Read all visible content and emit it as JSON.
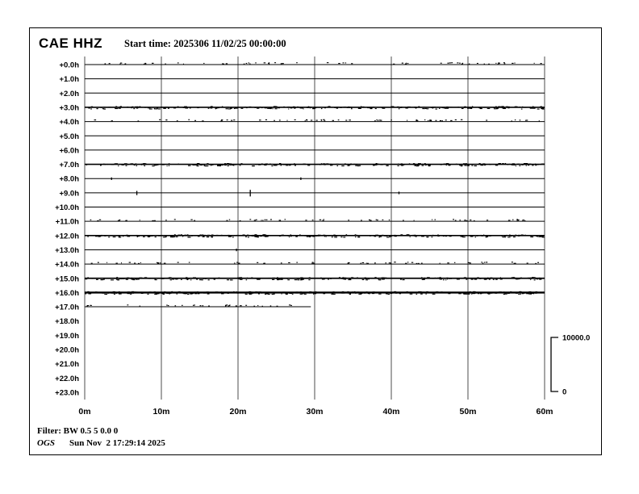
{
  "header": {
    "station": "CAE HHZ",
    "start_time_label": "Start time: 2025306 11/02/25 00:00:00"
  },
  "footer": {
    "filter_label": "Filter: BW 0.5 5 0.0 0",
    "agency": "OGS",
    "timestamp": "Sun Nov  2 17:29:14 2025"
  },
  "colors": {
    "background": "#ffffff",
    "frame": "#000000",
    "grid": "#909090",
    "trace": "#000000",
    "text": "#000000"
  },
  "chart_data": {
    "type": "line",
    "subtype": "helicorder",
    "title": "CAE HHZ",
    "start_time": "2025306 11/02/25 00:00:00",
    "grid": "vertical-only",
    "x_axis": {
      "tick_labels": [
        "0m",
        "10m",
        "20m",
        "30m",
        "40m",
        "50m",
        "60m"
      ],
      "range_minutes": [
        0,
        60
      ],
      "minutes_per_line": 60
    },
    "amplitude_scale": {
      "max": 10000.0,
      "min": 0,
      "max_label": "10000.0",
      "min_label": "0"
    },
    "rows": [
      {
        "label": "+0.0h",
        "activity": "light",
        "start_min": 0,
        "end_min": 60,
        "spikes": []
      },
      {
        "label": "+1.0h",
        "activity": "quiet",
        "start_min": 0,
        "end_min": 60,
        "spikes": []
      },
      {
        "label": "+2.0h",
        "activity": "quiet",
        "start_min": 0,
        "end_min": 60,
        "spikes": []
      },
      {
        "label": "+3.0h",
        "activity": "heavy",
        "start_min": 0,
        "end_min": 60,
        "spikes": []
      },
      {
        "label": "+4.0h",
        "activity": "light",
        "start_min": 0,
        "end_min": 60,
        "spikes": []
      },
      {
        "label": "+5.0h",
        "activity": "quiet",
        "start_min": 0,
        "end_min": 60,
        "spikes": []
      },
      {
        "label": "+6.0h",
        "activity": "quiet",
        "start_min": 0,
        "end_min": 60,
        "spikes": []
      },
      {
        "label": "+7.0h",
        "activity": "heavy",
        "start_min": 0,
        "end_min": 60,
        "spikes": []
      },
      {
        "label": "+8.0h",
        "activity": "quiet",
        "start_min": 0,
        "end_min": 60,
        "spikes": [
          {
            "min": 3.5,
            "size": "small"
          },
          {
            "min": 28.2,
            "size": "small"
          }
        ]
      },
      {
        "label": "+9.0h",
        "activity": "quiet",
        "start_min": 0,
        "end_min": 60,
        "spikes": [
          {
            "min": 6.8,
            "size": "medium"
          },
          {
            "min": 21.6,
            "size": "large"
          },
          {
            "min": 41.0,
            "size": "small"
          }
        ]
      },
      {
        "label": "+10.0h",
        "activity": "quiet",
        "start_min": 0,
        "end_min": 60,
        "spikes": []
      },
      {
        "label": "+11.0h",
        "activity": "light",
        "start_min": 0,
        "end_min": 60,
        "spikes": []
      },
      {
        "label": "+12.0h",
        "activity": "heavy",
        "start_min": 0,
        "end_min": 60,
        "spikes": []
      },
      {
        "label": "+13.0h",
        "activity": "quiet",
        "start_min": 0,
        "end_min": 60,
        "spikes": [
          {
            "min": 19.8,
            "size": "small"
          }
        ]
      },
      {
        "label": "+14.0h",
        "activity": "light",
        "start_min": 0,
        "end_min": 60,
        "spikes": []
      },
      {
        "label": "+15.0h",
        "activity": "heavy",
        "start_min": 0,
        "end_min": 60,
        "spikes": []
      },
      {
        "label": "+16.0h",
        "activity": "heavy_dark",
        "start_min": 0,
        "end_min": 60,
        "spikes": []
      },
      {
        "label": "+17.0h",
        "activity": "light",
        "start_min": 0,
        "end_min": 29.5,
        "spikes": []
      },
      {
        "label": "+18.0h",
        "activity": "none",
        "start_min": 0,
        "end_min": 0,
        "spikes": []
      },
      {
        "label": "+19.0h",
        "activity": "none",
        "start_min": 0,
        "end_min": 0,
        "spikes": []
      },
      {
        "label": "+20.0h",
        "activity": "none",
        "start_min": 0,
        "end_min": 0,
        "spikes": []
      },
      {
        "label": "+21.0h",
        "activity": "none",
        "start_min": 0,
        "end_min": 0,
        "spikes": []
      },
      {
        "label": "+22.0h",
        "activity": "none",
        "start_min": 0,
        "end_min": 0,
        "spikes": []
      },
      {
        "label": "+23.0h",
        "activity": "none",
        "start_min": 0,
        "end_min": 0,
        "spikes": []
      }
    ]
  }
}
